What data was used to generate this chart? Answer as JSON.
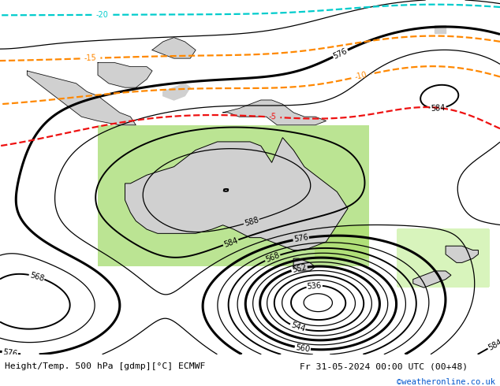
{
  "title_left": "Height/Temp. 500 hPa [gdmp][°C] ECMWF",
  "title_right": "Fr 31-05-2024 00:00 UTC (00+48)",
  "credit": "©weatheronline.co.uk",
  "fig_width": 6.34,
  "fig_height": 4.9,
  "dpi": 100,
  "ocean_color": "#b0b0b0",
  "land_color": "#d0d0d0",
  "text_bg": "#ffffff",
  "z500_color": "#000000",
  "temp_red_color": "#ee1111",
  "temp_orange_color": "#ff8800",
  "temp_cyan_color": "#00cccc",
  "temp_blue_color": "#4499ff",
  "green_fill_color": "#b0e080",
  "green_fill_color2": "#c8f0a0",
  "credit_color": "#0055cc"
}
